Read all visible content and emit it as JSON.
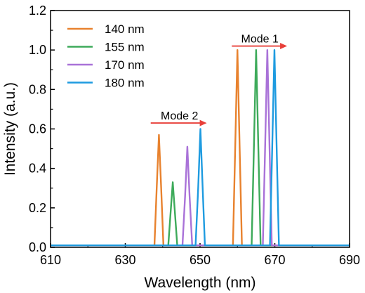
{
  "chart_data": {
    "type": "line",
    "xlabel": "Wavelength (nm)",
    "ylabel": "Intensity (a.u.)",
    "xlim": [
      610,
      690
    ],
    "ylim": [
      0,
      1.2
    ],
    "x_ticks": [
      "610",
      "630",
      "650",
      "670",
      "690"
    ],
    "x_tick_values": [
      610,
      630,
      650,
      670,
      690
    ],
    "y_ticks": [
      "0.0",
      "0.2",
      "0.4",
      "0.6",
      "0.8",
      "1.0",
      "1.2"
    ],
    "y_tick_values": [
      0,
      0.2,
      0.4,
      0.6,
      0.8,
      1.0,
      1.2
    ],
    "grid": false,
    "legend_position": "top-left",
    "series": [
      {
        "name": "140 nm",
        "color": "#E8822E",
        "x": [
          610,
          637.8,
          638.4,
          639.0,
          639.6,
          640.2,
          658.8,
          659.4,
          660.0,
          660.6,
          661.2,
          690
        ],
        "y": [
          0.01,
          0.01,
          0.3,
          0.57,
          0.3,
          0.01,
          0.01,
          0.5,
          1.0,
          0.5,
          0.01,
          0.01
        ]
      },
      {
        "name": "155 nm",
        "color": "#3DAA5A",
        "x": [
          610,
          641.5,
          642.1,
          642.7,
          643.3,
          643.9,
          663.8,
          664.4,
          665.0,
          665.6,
          666.2,
          690
        ],
        "y": [
          0.01,
          0.01,
          0.17,
          0.33,
          0.17,
          0.01,
          0.01,
          0.5,
          1.0,
          0.5,
          0.01,
          0.01
        ]
      },
      {
        "name": "170 nm",
        "color": "#A972D8",
        "x": [
          610,
          645.3,
          646.0,
          646.6,
          647.2,
          647.9,
          666.8,
          667.4,
          668.0,
          668.6,
          669.2,
          690
        ],
        "y": [
          0.01,
          0.01,
          0.26,
          0.51,
          0.26,
          0.01,
          0.01,
          0.5,
          1.0,
          0.5,
          0.01,
          0.01
        ]
      },
      {
        "name": "180 nm",
        "color": "#1E9BE0",
        "x": [
          610,
          648.8,
          649.5,
          650.1,
          650.7,
          651.3,
          668.7,
          669.3,
          669.9,
          670.5,
          671.1,
          690
        ],
        "y": [
          0.01,
          0.01,
          0.3,
          0.6,
          0.3,
          0.01,
          0.01,
          0.5,
          1.0,
          0.5,
          0.01,
          0.01
        ]
      }
    ],
    "annotations": [
      {
        "text": "Mode 1",
        "arrow_from": [
          658.5,
          1.02
        ],
        "arrow_to": [
          673.3,
          1.02
        ],
        "text_at": [
          666,
          1.06
        ]
      },
      {
        "text": "Mode 2",
        "arrow_from": [
          636.8,
          0.63
        ],
        "arrow_to": [
          651.8,
          0.63
        ],
        "text_at": [
          644.5,
          0.67
        ]
      }
    ],
    "arrow_color": "#E8403A"
  }
}
